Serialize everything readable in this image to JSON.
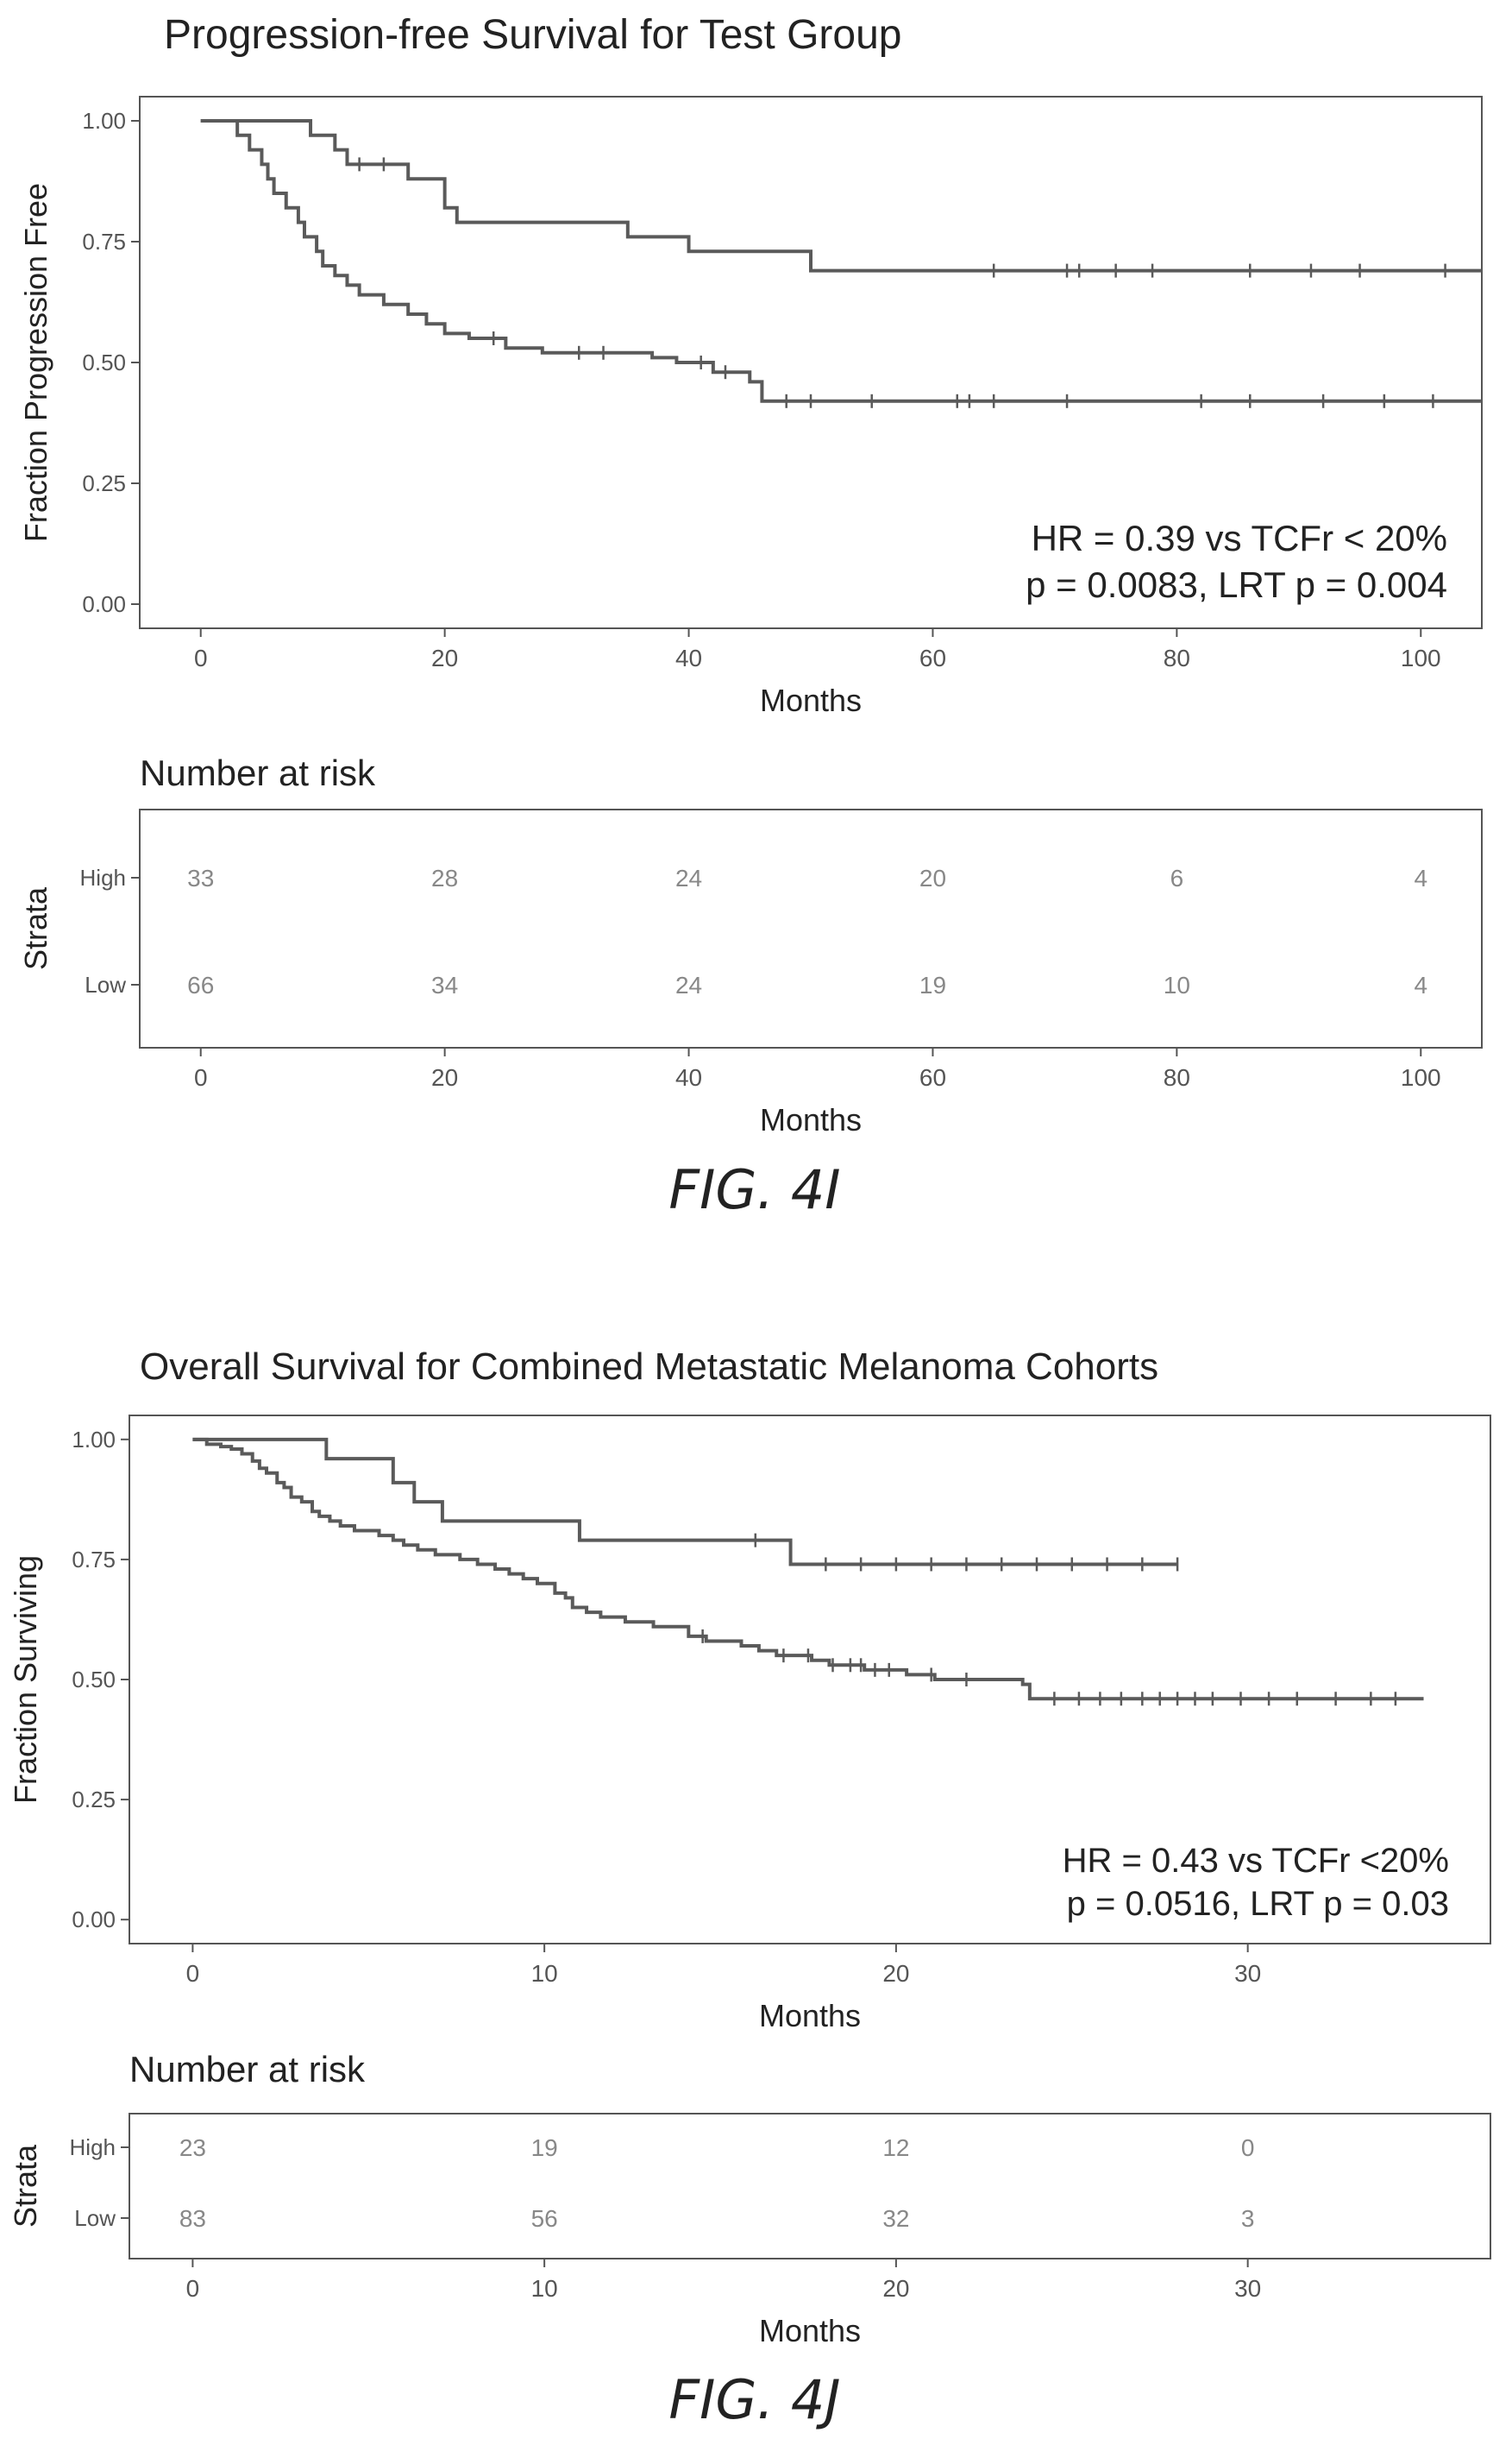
{
  "figures": [
    {
      "fig_label": "FIG. 4I",
      "stats_lines": [
        "HR = 0.39 vs TCFr < 20%",
        "p = 0.0083, LRT p = 0.004"
      ],
      "risk_table": {
        "title": "Number at risk",
        "ylabel": "Strata",
        "xlabel": "Months",
        "strata": [
          "High",
          "Low"
        ],
        "x_ticks": [
          0,
          20,
          40,
          60,
          80,
          100
        ],
        "counts": [
          [
            "33",
            "28",
            "24",
            "20",
            "6",
            "4"
          ],
          [
            "66",
            "34",
            "24",
            "19",
            "10",
            "4"
          ]
        ]
      }
    },
    {
      "fig_label": "FIG. 4J",
      "stats_lines": [
        "HR = 0.43 vs TCFr <20%",
        "p = 0.0516, LRT p = 0.03"
      ],
      "risk_table": {
        "title": "Number at risk",
        "ylabel": "Strata",
        "xlabel": "Months",
        "strata": [
          "High",
          "Low"
        ],
        "x_ticks": [
          0,
          10,
          20,
          30
        ],
        "counts": [
          [
            "23",
            "19",
            "12",
            "0"
          ],
          [
            "83",
            "56",
            "32",
            "3"
          ]
        ]
      }
    }
  ],
  "chart_data": [
    {
      "type": "line",
      "subtype": "kaplan-meier step",
      "title": "Progression-free Survival for Test Group",
      "xlabel": "Months",
      "ylabel": "Fraction Progression Free",
      "xlim": [
        -5,
        105
      ],
      "ylim": [
        -0.05,
        1.05
      ],
      "x_ticks": [
        0,
        20,
        40,
        60,
        80,
        100
      ],
      "y_ticks": [
        "0.00",
        "0.25",
        "0.50",
        "0.75",
        "1.00"
      ],
      "grid": false,
      "series": [
        {
          "steps": [
            [
              0,
              1.0
            ],
            [
              9,
              0.97
            ],
            [
              11,
              0.94
            ],
            [
              12,
              0.91
            ],
            [
              17,
              0.88
            ],
            [
              20,
              0.82
            ],
            [
              21,
              0.79
            ],
            [
              35,
              0.76
            ],
            [
              40,
              0.73
            ],
            [
              50,
              0.69
            ],
            [
              105,
              0.69
            ]
          ],
          "censor_x": [
            13,
            15,
            65,
            71,
            72,
            75,
            78,
            86,
            91,
            95,
            102
          ]
        },
        {
          "steps": [
            [
              0,
              1.0
            ],
            [
              3,
              0.97
            ],
            [
              4,
              0.94
            ],
            [
              5,
              0.91
            ],
            [
              5.5,
              0.88
            ],
            [
              6,
              0.85
            ],
            [
              7,
              0.82
            ],
            [
              8,
              0.79
            ],
            [
              8.5,
              0.76
            ],
            [
              9.5,
              0.73
            ],
            [
              10,
              0.7
            ],
            [
              11,
              0.68
            ],
            [
              12,
              0.66
            ],
            [
              13,
              0.64
            ],
            [
              15,
              0.62
            ],
            [
              17,
              0.6
            ],
            [
              18.5,
              0.58
            ],
            [
              20,
              0.56
            ],
            [
              22,
              0.55
            ],
            [
              25,
              0.53
            ],
            [
              28,
              0.52
            ],
            [
              37,
              0.51
            ],
            [
              39,
              0.5
            ],
            [
              42,
              0.48
            ],
            [
              45,
              0.46
            ],
            [
              46,
              0.42
            ],
            [
              105,
              0.42
            ]
          ],
          "censor_x": [
            24,
            31,
            33,
            41,
            43,
            48,
            50,
            55,
            62,
            63,
            65,
            71,
            82,
            86,
            92,
            97,
            101
          ]
        }
      ]
    },
    {
      "type": "line",
      "subtype": "kaplan-meier step",
      "title": "Overall Survival for Combined Metastatic Melanoma Cohorts",
      "xlabel": "Months",
      "ylabel": "Fraction Surviving",
      "xlim": [
        -1.8,
        36.9
      ],
      "ylim": [
        -0.05,
        1.05
      ],
      "x_ticks": [
        0,
        10,
        20,
        30
      ],
      "y_ticks": [
        "0.00",
        "0.25",
        "0.50",
        "0.75",
        "1.00"
      ],
      "grid": false,
      "series": [
        {
          "steps": [
            [
              0,
              1.0
            ],
            [
              3.8,
              0.96
            ],
            [
              5.7,
              0.91
            ],
            [
              6.3,
              0.87
            ],
            [
              7.1,
              0.83
            ],
            [
              11,
              0.79
            ],
            [
              17,
              0.74
            ],
            [
              28,
              0.74
            ]
          ],
          "censor_x": [
            16,
            18,
            19,
            20,
            21,
            22,
            23,
            24,
            25,
            26,
            27,
            28
          ]
        },
        {
          "steps": [
            [
              0,
              1.0
            ],
            [
              0.4,
              0.99
            ],
            [
              0.8,
              0.985
            ],
            [
              1.1,
              0.98
            ],
            [
              1.4,
              0.97
            ],
            [
              1.7,
              0.955
            ],
            [
              1.9,
              0.94
            ],
            [
              2.1,
              0.93
            ],
            [
              2.4,
              0.91
            ],
            [
              2.6,
              0.9
            ],
            [
              2.8,
              0.88
            ],
            [
              3.1,
              0.87
            ],
            [
              3.4,
              0.85
            ],
            [
              3.6,
              0.84
            ],
            [
              3.9,
              0.83
            ],
            [
              4.2,
              0.82
            ],
            [
              4.6,
              0.81
            ],
            [
              5.3,
              0.8
            ],
            [
              5.7,
              0.79
            ],
            [
              6.0,
              0.78
            ],
            [
              6.4,
              0.77
            ],
            [
              6.9,
              0.76
            ],
            [
              7.6,
              0.75
            ],
            [
              8.1,
              0.74
            ],
            [
              8.6,
              0.73
            ],
            [
              9.0,
              0.72
            ],
            [
              9.4,
              0.71
            ],
            [
              9.8,
              0.7
            ],
            [
              10.3,
              0.68
            ],
            [
              10.6,
              0.67
            ],
            [
              10.8,
              0.65
            ],
            [
              11.2,
              0.64
            ],
            [
              11.6,
              0.63
            ],
            [
              12.3,
              0.62
            ],
            [
              13.1,
              0.61
            ],
            [
              14.1,
              0.59
            ],
            [
              14.6,
              0.58
            ],
            [
              15.6,
              0.57
            ],
            [
              16.1,
              0.56
            ],
            [
              16.6,
              0.55
            ],
            [
              17.6,
              0.54
            ],
            [
              18.1,
              0.53
            ],
            [
              19.1,
              0.52
            ],
            [
              20.3,
              0.51
            ],
            [
              21.1,
              0.5
            ],
            [
              23.6,
              0.49
            ],
            [
              23.8,
              0.46
            ],
            [
              35,
              0.46
            ]
          ],
          "censor_x": [
            14.5,
            16.8,
            17.5,
            18.2,
            18.7,
            19.0,
            19.4,
            19.8,
            21.0,
            22.0,
            24.5,
            25.2,
            25.8,
            26.4,
            27.0,
            27.5,
            28.0,
            28.5,
            29.0,
            29.8,
            30.6,
            31.4,
            32.5,
            33.5,
            34.2
          ]
        }
      ]
    }
  ]
}
